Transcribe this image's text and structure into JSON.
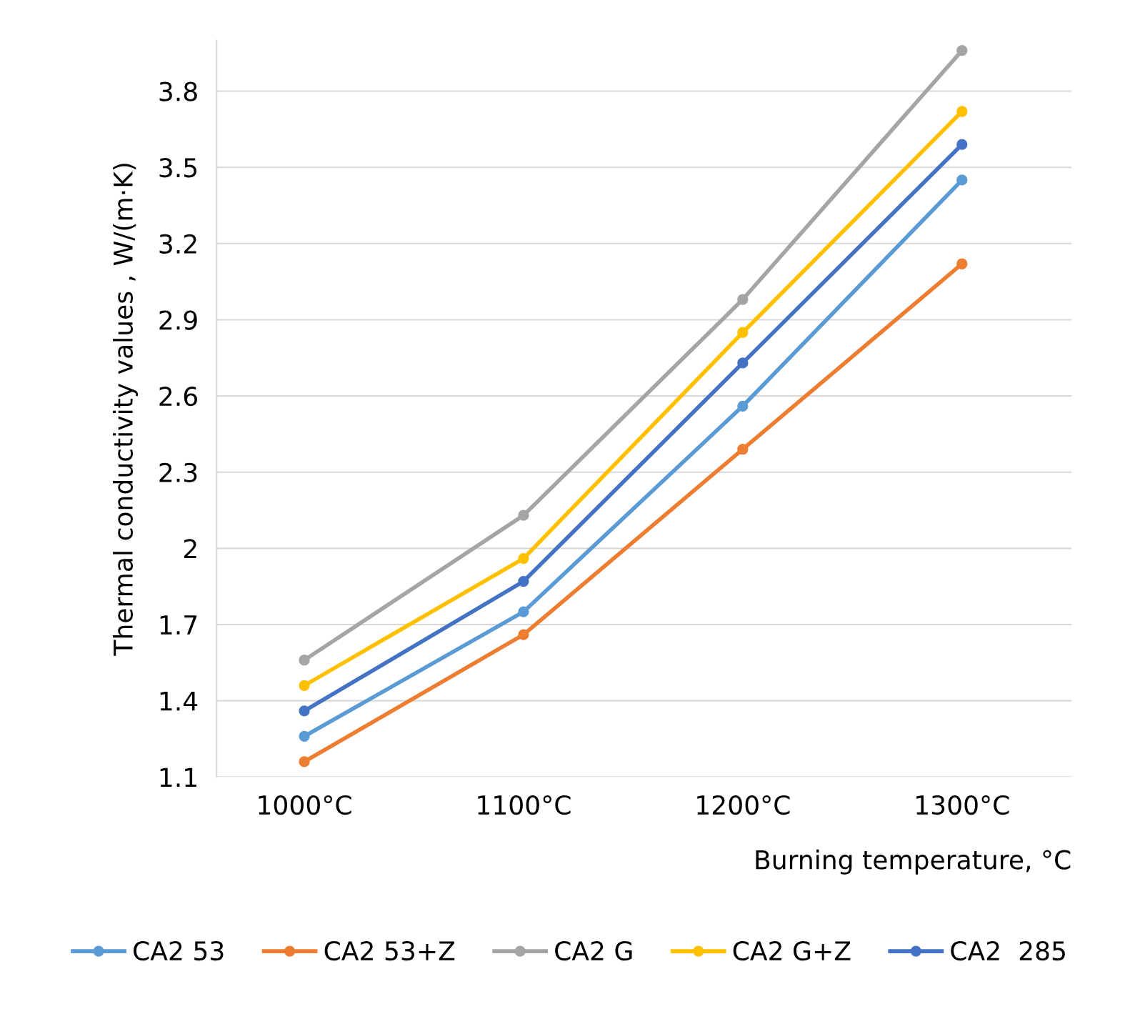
{
  "chart_data": {
    "type": "line",
    "xlabel": "Burning temperature, °C",
    "ylabel": "Thermal conductivity values , W/(m·K)",
    "categories": [
      "1000°C",
      "1100°C",
      "1200°C",
      "1300°C"
    ],
    "series": [
      {
        "name": "CA2 53",
        "color": "#5b9bd5",
        "values": [
          1.26,
          1.75,
          2.56,
          3.45
        ]
      },
      {
        "name": "CA2 53+Z",
        "color": "#ed7d31",
        "values": [
          1.16,
          1.66,
          2.39,
          3.12
        ]
      },
      {
        "name": "CA2 G",
        "color": "#a5a5a5",
        "values": [
          1.56,
          2.13,
          2.98,
          3.96
        ]
      },
      {
        "name": "CA2 G+Z",
        "color": "#ffc000",
        "values": [
          1.46,
          1.96,
          2.85,
          3.72
        ]
      },
      {
        "name": "CA2  285",
        "color": "#4472c4",
        "values": [
          1.36,
          1.87,
          2.73,
          3.59
        ]
      }
    ],
    "ylim": [
      1.1,
      4.0
    ],
    "yticks": [
      1.1,
      1.4,
      1.7,
      2,
      2.3,
      2.6,
      2.9,
      3.2,
      3.5,
      3.8
    ],
    "grid": "y",
    "legend": "bottom",
    "marker": "circle",
    "line_style": "solid"
  }
}
